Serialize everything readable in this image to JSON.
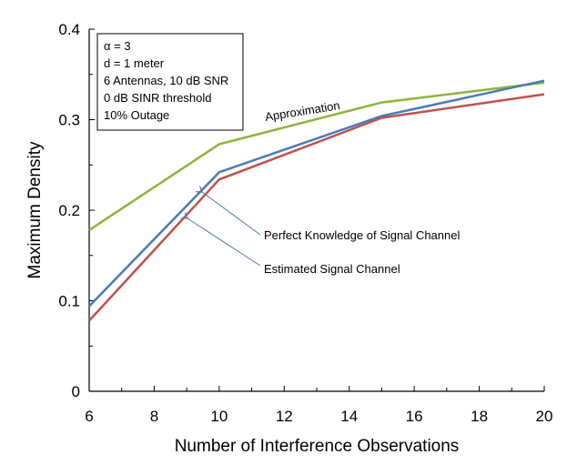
{
  "chart_data": {
    "type": "line",
    "title": "",
    "xlabel": "Number of Interference Observations",
    "ylabel": "Maximum Density",
    "xlim": [
      6,
      20
    ],
    "ylim": [
      0,
      0.4
    ],
    "xticks": [
      "6",
      "8",
      "10",
      "12",
      "14",
      "16",
      "18",
      "20"
    ],
    "yticks": [
      "0",
      "0.1",
      "0.2",
      "0.3",
      "0.4"
    ],
    "x": [
      6,
      10,
      15,
      20
    ],
    "series": [
      {
        "name": "Approximation",
        "color": "#8db33f",
        "values": [
          0.178,
          0.273,
          0.319,
          0.341
        ]
      },
      {
        "name": "Perfect Knowledge of Signal Channel",
        "color": "#4a7ab8",
        "values": [
          0.094,
          0.242,
          0.304,
          0.343
        ]
      },
      {
        "name": "Estimated Signal Channel",
        "color": "#c0504d",
        "values": [
          0.078,
          0.234,
          0.302,
          0.328
        ]
      }
    ],
    "legend_box": [
      "α = 3",
      "d = 1 meter",
      "6 Antennas, 10 dB SNR",
      "0 dB SINR threshold",
      "10% Outage"
    ],
    "annotations": {
      "approximation": "Approximation",
      "perfect": "Perfect Knowledge of Signal Channel",
      "estimated": "Estimated Signal Channel"
    },
    "grid": false
  }
}
